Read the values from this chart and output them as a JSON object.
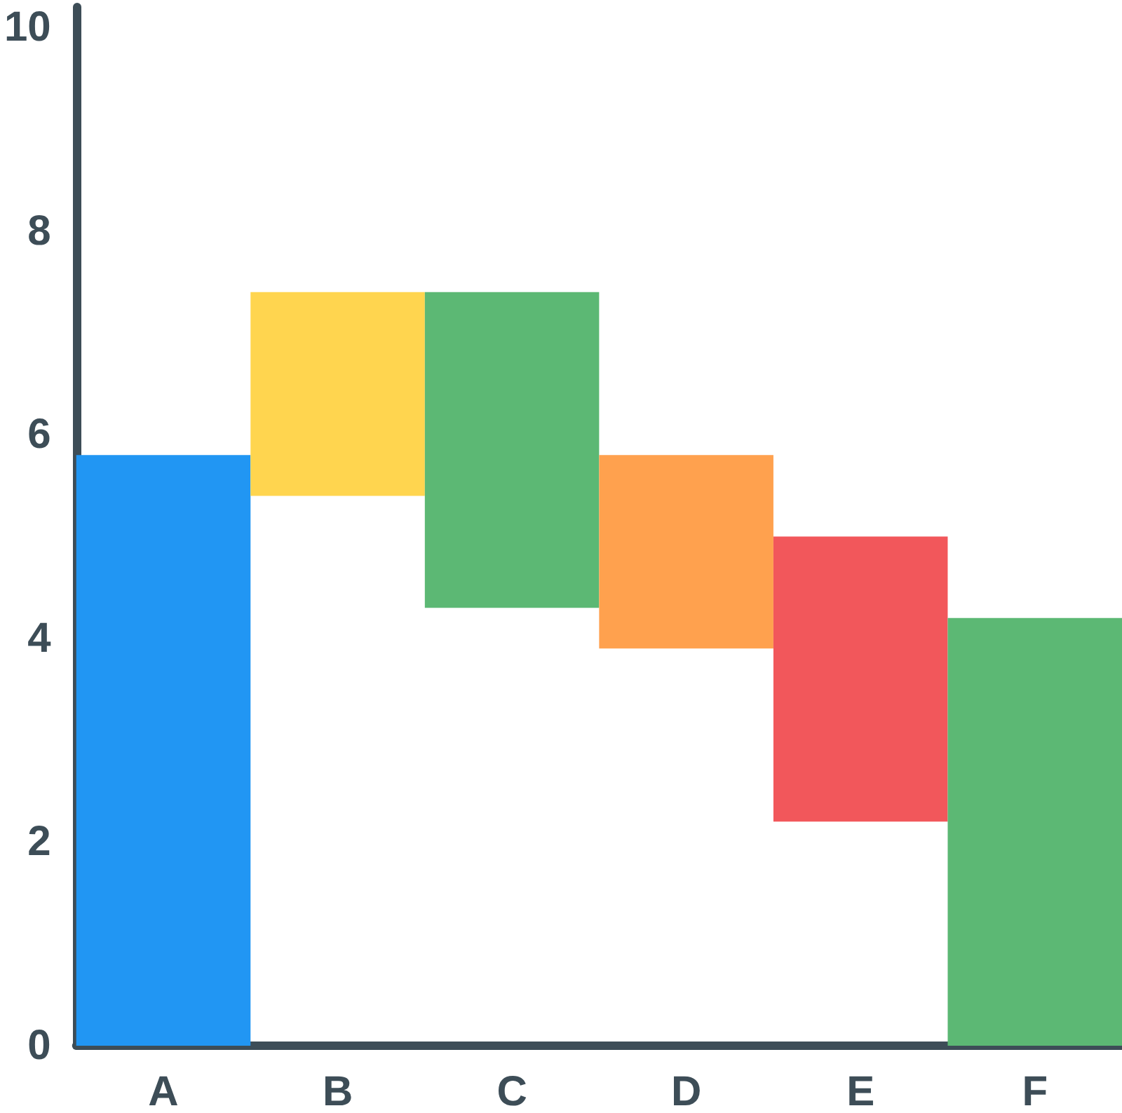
{
  "chart_data": {
    "type": "bar",
    "categories": [
      "A",
      "B",
      "C",
      "D",
      "E",
      "F"
    ],
    "base": [
      0,
      5.4,
      4.3,
      3.9,
      2.2,
      0
    ],
    "values": [
      5.8,
      2.0,
      3.1,
      1.9,
      2.8,
      4.2
    ],
    "colors": [
      "#2196f3",
      "#ffd54f",
      "#5cb874",
      "#ffa14e",
      "#f2575b",
      "#5cb874"
    ],
    "ylim": [
      0,
      10.2
    ],
    "yticks": [
      0,
      2,
      4,
      6,
      8,
      10
    ]
  }
}
